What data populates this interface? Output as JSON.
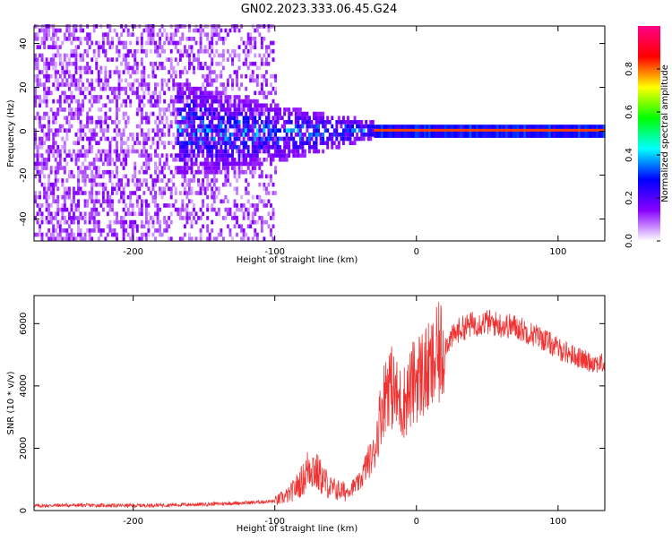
{
  "figure": {
    "title": "GN02.2023.333.06.45.G24"
  },
  "colors": {
    "snr_line": "#ee3333",
    "axis": "#000000",
    "background": "#ffffff"
  },
  "chart_data": [
    {
      "type": "heatmap",
      "xlabel": "Height of straight line (km)",
      "ylabel": "Frequency (Hz)",
      "xlim": [
        -270,
        133
      ],
      "ylim": [
        -50,
        48
      ],
      "x_ticks": [
        -200,
        -100,
        0,
        100
      ],
      "y_ticks": [
        -40,
        -20,
        0,
        20,
        40
      ],
      "x_tick_labels": [
        "-200",
        "-100",
        "0",
        "100"
      ],
      "y_tick_labels": [
        "-40",
        "-20",
        "0",
        "20",
        "40"
      ],
      "grid": false,
      "description_regions": [
        {
          "x_range": [
            -270,
            -100
          ],
          "freq_range": [
            -50,
            48
          ],
          "amplitude": 0.1,
          "pattern": "broadband noise"
        },
        {
          "x_range": [
            -130,
            -30
          ],
          "freq_range": [
            -15,
            18
          ],
          "amplitude": 0.3,
          "pattern": "converging signal"
        },
        {
          "x_range": [
            -30,
            133
          ],
          "freq_range": [
            -1,
            1
          ],
          "amplitude": 0.9,
          "pattern": "narrow carrier at 0 Hz"
        }
      ],
      "colorbar": {
        "label": "Normalized spectral amplitude",
        "range": [
          0,
          1
        ],
        "ticks": [
          0,
          0.2,
          0.4,
          0.6,
          0.8
        ],
        "tick_labels": [
          "0.0",
          "0.2",
          "0.4",
          "0.6",
          "0.8"
        ],
        "colormap": [
          "#ffffff",
          "#8800ff",
          "#0000ff",
          "#00ffff",
          "#00ff00",
          "#ffff00",
          "#ff0000",
          "#ff0088"
        ]
      }
    },
    {
      "type": "line",
      "xlabel": "Height of straight line (km)",
      "ylabel": "SNR (10 * v/v)",
      "xlim": [
        -270,
        133
      ],
      "ylim": [
        0,
        6900
      ],
      "x_ticks": [
        -200,
        -100,
        0,
        100
      ],
      "y_ticks": [
        0,
        2000,
        4000,
        6000
      ],
      "x_tick_labels": [
        "-200",
        "-100",
        "0",
        "100"
      ],
      "y_tick_labels": [
        "0",
        "2000",
        "4000",
        "6000"
      ],
      "grid": false,
      "series": [
        {
          "x": [
            -270,
            -250,
            -200,
            -150,
            -120,
            -100,
            -90,
            -80,
            -75,
            -70,
            -60,
            -50,
            -40,
            -35,
            -30,
            -25,
            -20,
            -15,
            -10,
            -5,
            0,
            10,
            20,
            30,
            40,
            50,
            60,
            70,
            80,
            90,
            100,
            110,
            120,
            133
          ],
          "y": [
            150,
            170,
            160,
            200,
            250,
            300,
            500,
            1000,
            1500,
            1200,
            700,
            600,
            900,
            1500,
            1800,
            3200,
            4200,
            3700,
            3400,
            3800,
            4300,
            4500,
            5300,
            5800,
            6000,
            6050,
            5950,
            5900,
            5700,
            5500,
            5200,
            5000,
            4800,
            4700
          ]
        }
      ]
    }
  ]
}
